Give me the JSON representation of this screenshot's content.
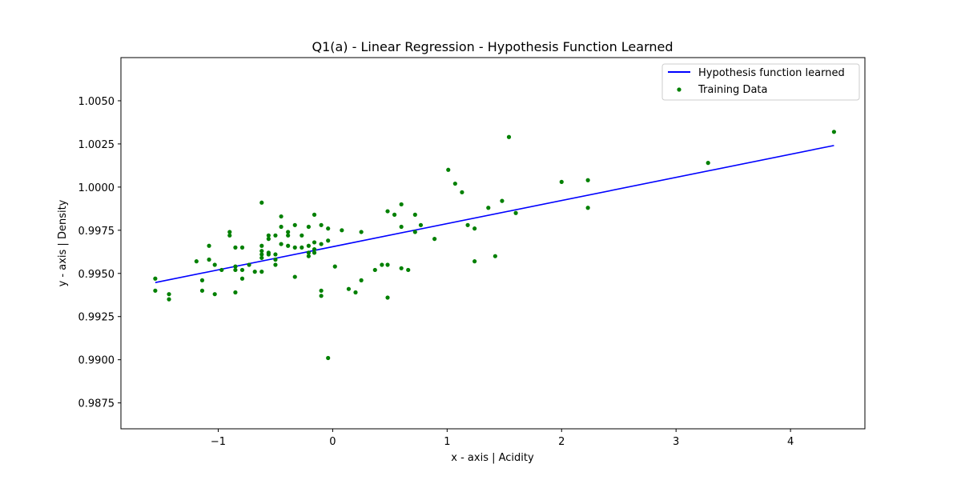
{
  "chart_data": {
    "type": "scatter",
    "title": "Q1(a) - Linear Regression - Hypothesis Function Learned",
    "xlabel": "x - axis | Acidity",
    "ylabel": "y - axis | Density",
    "xlim": [
      -1.85,
      4.65
    ],
    "ylim": [
      0.986,
      1.0075
    ],
    "xticks": [
      -1,
      0,
      1,
      2,
      3,
      4
    ],
    "xtick_labels": [
      "−1",
      "0",
      "1",
      "2",
      "3",
      "4"
    ],
    "yticks": [
      0.9875,
      0.99,
      0.9925,
      0.995,
      0.9975,
      1.0,
      1.0025,
      1.005
    ],
    "ytick_labels": [
      "0.9875",
      "0.9900",
      "0.9925",
      "0.9950",
      "0.9975",
      "1.0000",
      "1.0025",
      "1.0050"
    ],
    "grid": false,
    "legend_position": "top-right",
    "colors": {
      "line": "#0000ff",
      "points": "#008000"
    },
    "series": [
      {
        "name": "Hypothesis function learned",
        "kind": "line",
        "x": [
          -1.55,
          4.38
        ],
        "y": [
          0.99447,
          1.00241
        ]
      },
      {
        "name": "Training Data",
        "kind": "scatter",
        "points": [
          [
            -1.55,
            0.9947
          ],
          [
            -1.55,
            0.994
          ],
          [
            -1.43,
            0.9938
          ],
          [
            -1.43,
            0.9935
          ],
          [
            -1.19,
            0.9957
          ],
          [
            -1.14,
            0.9946
          ],
          [
            -1.14,
            0.994
          ],
          [
            -1.08,
            0.9966
          ],
          [
            -1.08,
            0.9958
          ],
          [
            -1.03,
            0.9955
          ],
          [
            -1.03,
            0.9938
          ],
          [
            -0.97,
            0.9952
          ],
          [
            -0.9,
            0.9974
          ],
          [
            -0.9,
            0.9972
          ],
          [
            -0.85,
            0.9965
          ],
          [
            -0.85,
            0.9954
          ],
          [
            -0.85,
            0.9952
          ],
          [
            -0.85,
            0.9939
          ],
          [
            -0.79,
            0.9965
          ],
          [
            -0.79,
            0.9952
          ],
          [
            -0.79,
            0.9947
          ],
          [
            -0.73,
            0.9955
          ],
          [
            -0.68,
            0.9951
          ],
          [
            -0.62,
            0.9991
          ],
          [
            -0.62,
            0.9966
          ],
          [
            -0.62,
            0.9963
          ],
          [
            -0.62,
            0.9961
          ],
          [
            -0.62,
            0.9959
          ],
          [
            -0.62,
            0.9951
          ],
          [
            -0.56,
            0.9972
          ],
          [
            -0.56,
            0.997
          ],
          [
            -0.56,
            0.9962
          ],
          [
            -0.56,
            0.9961
          ],
          [
            -0.5,
            0.9972
          ],
          [
            -0.5,
            0.9961
          ],
          [
            -0.5,
            0.9958
          ],
          [
            -0.5,
            0.9955
          ],
          [
            -0.45,
            0.9983
          ],
          [
            -0.45,
            0.9977
          ],
          [
            -0.45,
            0.9967
          ],
          [
            -0.39,
            0.9974
          ],
          [
            -0.39,
            0.9972
          ],
          [
            -0.39,
            0.9966
          ],
          [
            -0.33,
            0.9978
          ],
          [
            -0.33,
            0.9965
          ],
          [
            -0.33,
            0.9948
          ],
          [
            -0.27,
            0.9972
          ],
          [
            -0.27,
            0.9965
          ],
          [
            -0.21,
            0.9977
          ],
          [
            -0.21,
            0.9966
          ],
          [
            -0.21,
            0.9962
          ],
          [
            -0.21,
            0.996
          ],
          [
            -0.16,
            0.9984
          ],
          [
            -0.16,
            0.9968
          ],
          [
            -0.16,
            0.9964
          ],
          [
            -0.16,
            0.9962
          ],
          [
            -0.1,
            0.9978
          ],
          [
            -0.1,
            0.9967
          ],
          [
            -0.1,
            0.994
          ],
          [
            -0.1,
            0.9937
          ],
          [
            -0.04,
            0.9976
          ],
          [
            -0.04,
            0.9969
          ],
          [
            -0.04,
            0.9901
          ],
          [
            0.02,
            0.9954
          ],
          [
            0.08,
            0.9975
          ],
          [
            0.14,
            0.9941
          ],
          [
            0.2,
            0.9939
          ],
          [
            0.25,
            0.9974
          ],
          [
            0.25,
            0.9946
          ],
          [
            0.37,
            0.9952
          ],
          [
            0.43,
            0.9955
          ],
          [
            0.48,
            0.9986
          ],
          [
            0.48,
            0.9955
          ],
          [
            0.48,
            0.9936
          ],
          [
            0.54,
            0.9984
          ],
          [
            0.6,
            0.999
          ],
          [
            0.6,
            0.9977
          ],
          [
            0.6,
            0.9953
          ],
          [
            0.66,
            0.9952
          ],
          [
            0.72,
            0.9984
          ],
          [
            0.72,
            0.9974
          ],
          [
            0.77,
            0.9978
          ],
          [
            0.89,
            0.997
          ],
          [
            1.01,
            1.001
          ],
          [
            1.07,
            1.0002
          ],
          [
            1.13,
            0.9997
          ],
          [
            1.18,
            0.9978
          ],
          [
            1.24,
            0.9976
          ],
          [
            1.24,
            0.9957
          ],
          [
            1.36,
            0.9988
          ],
          [
            1.42,
            0.996
          ],
          [
            1.48,
            0.9992
          ],
          [
            1.54,
            1.0029
          ],
          [
            1.6,
            0.9985
          ],
          [
            2.0,
            1.0003
          ],
          [
            2.23,
            1.0004
          ],
          [
            2.23,
            0.9988
          ],
          [
            3.28,
            1.0014
          ],
          [
            4.38,
            1.0032
          ]
        ]
      }
    ]
  }
}
